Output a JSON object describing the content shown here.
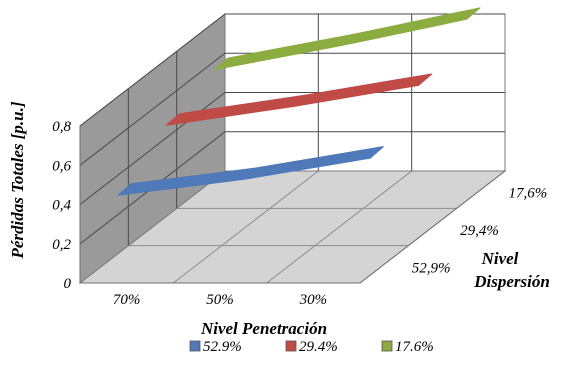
{
  "chart_data": {
    "type": "3d-ribbon-line",
    "ylabel": "Pérdidas Totales [p.u.]",
    "xlabel": "Nivel Penetración",
    "zlabel": [
      "Nivel",
      "Dispersión"
    ],
    "yticks": [
      "0",
      "0,2",
      "0,4",
      "0,6",
      "0,8"
    ],
    "ylim": [
      0,
      0.8
    ],
    "categories": [
      "70%",
      "50%",
      "30%"
    ],
    "depth_categories": [
      "52,9%",
      "29,4%",
      "17,6%"
    ],
    "series": [
      {
        "name": "52.9%",
        "values": [
          0.38,
          0.44,
          0.52
        ],
        "color": "#4f79b9"
      },
      {
        "name": "29.4%",
        "values": [
          0.55,
          0.62,
          0.7
        ],
        "color": "#bf4a46"
      },
      {
        "name": "17.6%",
        "values": [
          0.65,
          0.74,
          0.84
        ],
        "color": "#8bac3f"
      }
    ],
    "legend_position": "bottom",
    "grid": true
  }
}
